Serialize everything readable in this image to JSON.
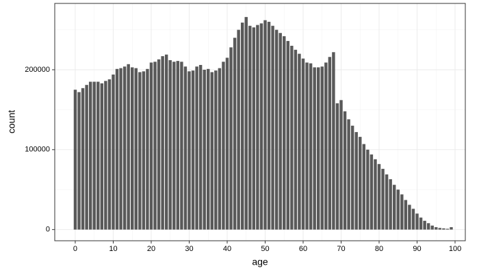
{
  "chart_data": {
    "type": "bar",
    "xlabel": "age",
    "ylabel": "count",
    "x": [
      0,
      1,
      2,
      3,
      4,
      5,
      6,
      7,
      8,
      9,
      10,
      11,
      12,
      13,
      14,
      15,
      16,
      17,
      18,
      19,
      20,
      21,
      22,
      23,
      24,
      25,
      26,
      27,
      28,
      29,
      30,
      31,
      32,
      33,
      34,
      35,
      36,
      37,
      38,
      39,
      40,
      41,
      42,
      43,
      44,
      45,
      46,
      47,
      48,
      49,
      50,
      51,
      52,
      53,
      54,
      55,
      56,
      57,
      58,
      59,
      60,
      61,
      62,
      63,
      64,
      65,
      66,
      67,
      68,
      69,
      70,
      71,
      72,
      73,
      74,
      75,
      76,
      77,
      78,
      79,
      80,
      81,
      82,
      83,
      84,
      85,
      86,
      87,
      88,
      89,
      90,
      91,
      92,
      93,
      94,
      95,
      96,
      97,
      98,
      99
    ],
    "values": [
      175000,
      172000,
      177000,
      181000,
      185000,
      185000,
      185000,
      183000,
      186000,
      188000,
      194000,
      201000,
      202000,
      204000,
      207000,
      203000,
      202000,
      197000,
      198000,
      201000,
      209000,
      210000,
      213000,
      217000,
      219000,
      212000,
      210000,
      211000,
      210000,
      204000,
      198000,
      199000,
      204000,
      206000,
      200000,
      201000,
      197000,
      199000,
      202000,
      210000,
      215000,
      228000,
      240000,
      250000,
      259000,
      266000,
      255000,
      253000,
      256000,
      258000,
      262000,
      260000,
      255000,
      250000,
      246000,
      242000,
      236000,
      230000,
      225000,
      220000,
      214000,
      209000,
      208000,
      203000,
      203000,
      204000,
      209000,
      216000,
      222000,
      158000,
      162000,
      148000,
      138000,
      130000,
      122000,
      116000,
      107000,
      100000,
      94000,
      88000,
      82000,
      76000,
      69000,
      63000,
      56000,
      50000,
      44000,
      37000,
      31000,
      26000,
      20000,
      15000,
      11000,
      8000,
      5000,
      3000,
      2000,
      1500,
      1000,
      3000
    ],
    "color": "#595959",
    "xlim": [
      -5.4,
      102.7
    ],
    "xticks": [
      0,
      10,
      20,
      30,
      40,
      50,
      60,
      70,
      80,
      90,
      100
    ],
    "ylim": [
      -14000,
      283000
    ],
    "yticks": [
      0,
      100000,
      200000
    ],
    "grid": true
  }
}
